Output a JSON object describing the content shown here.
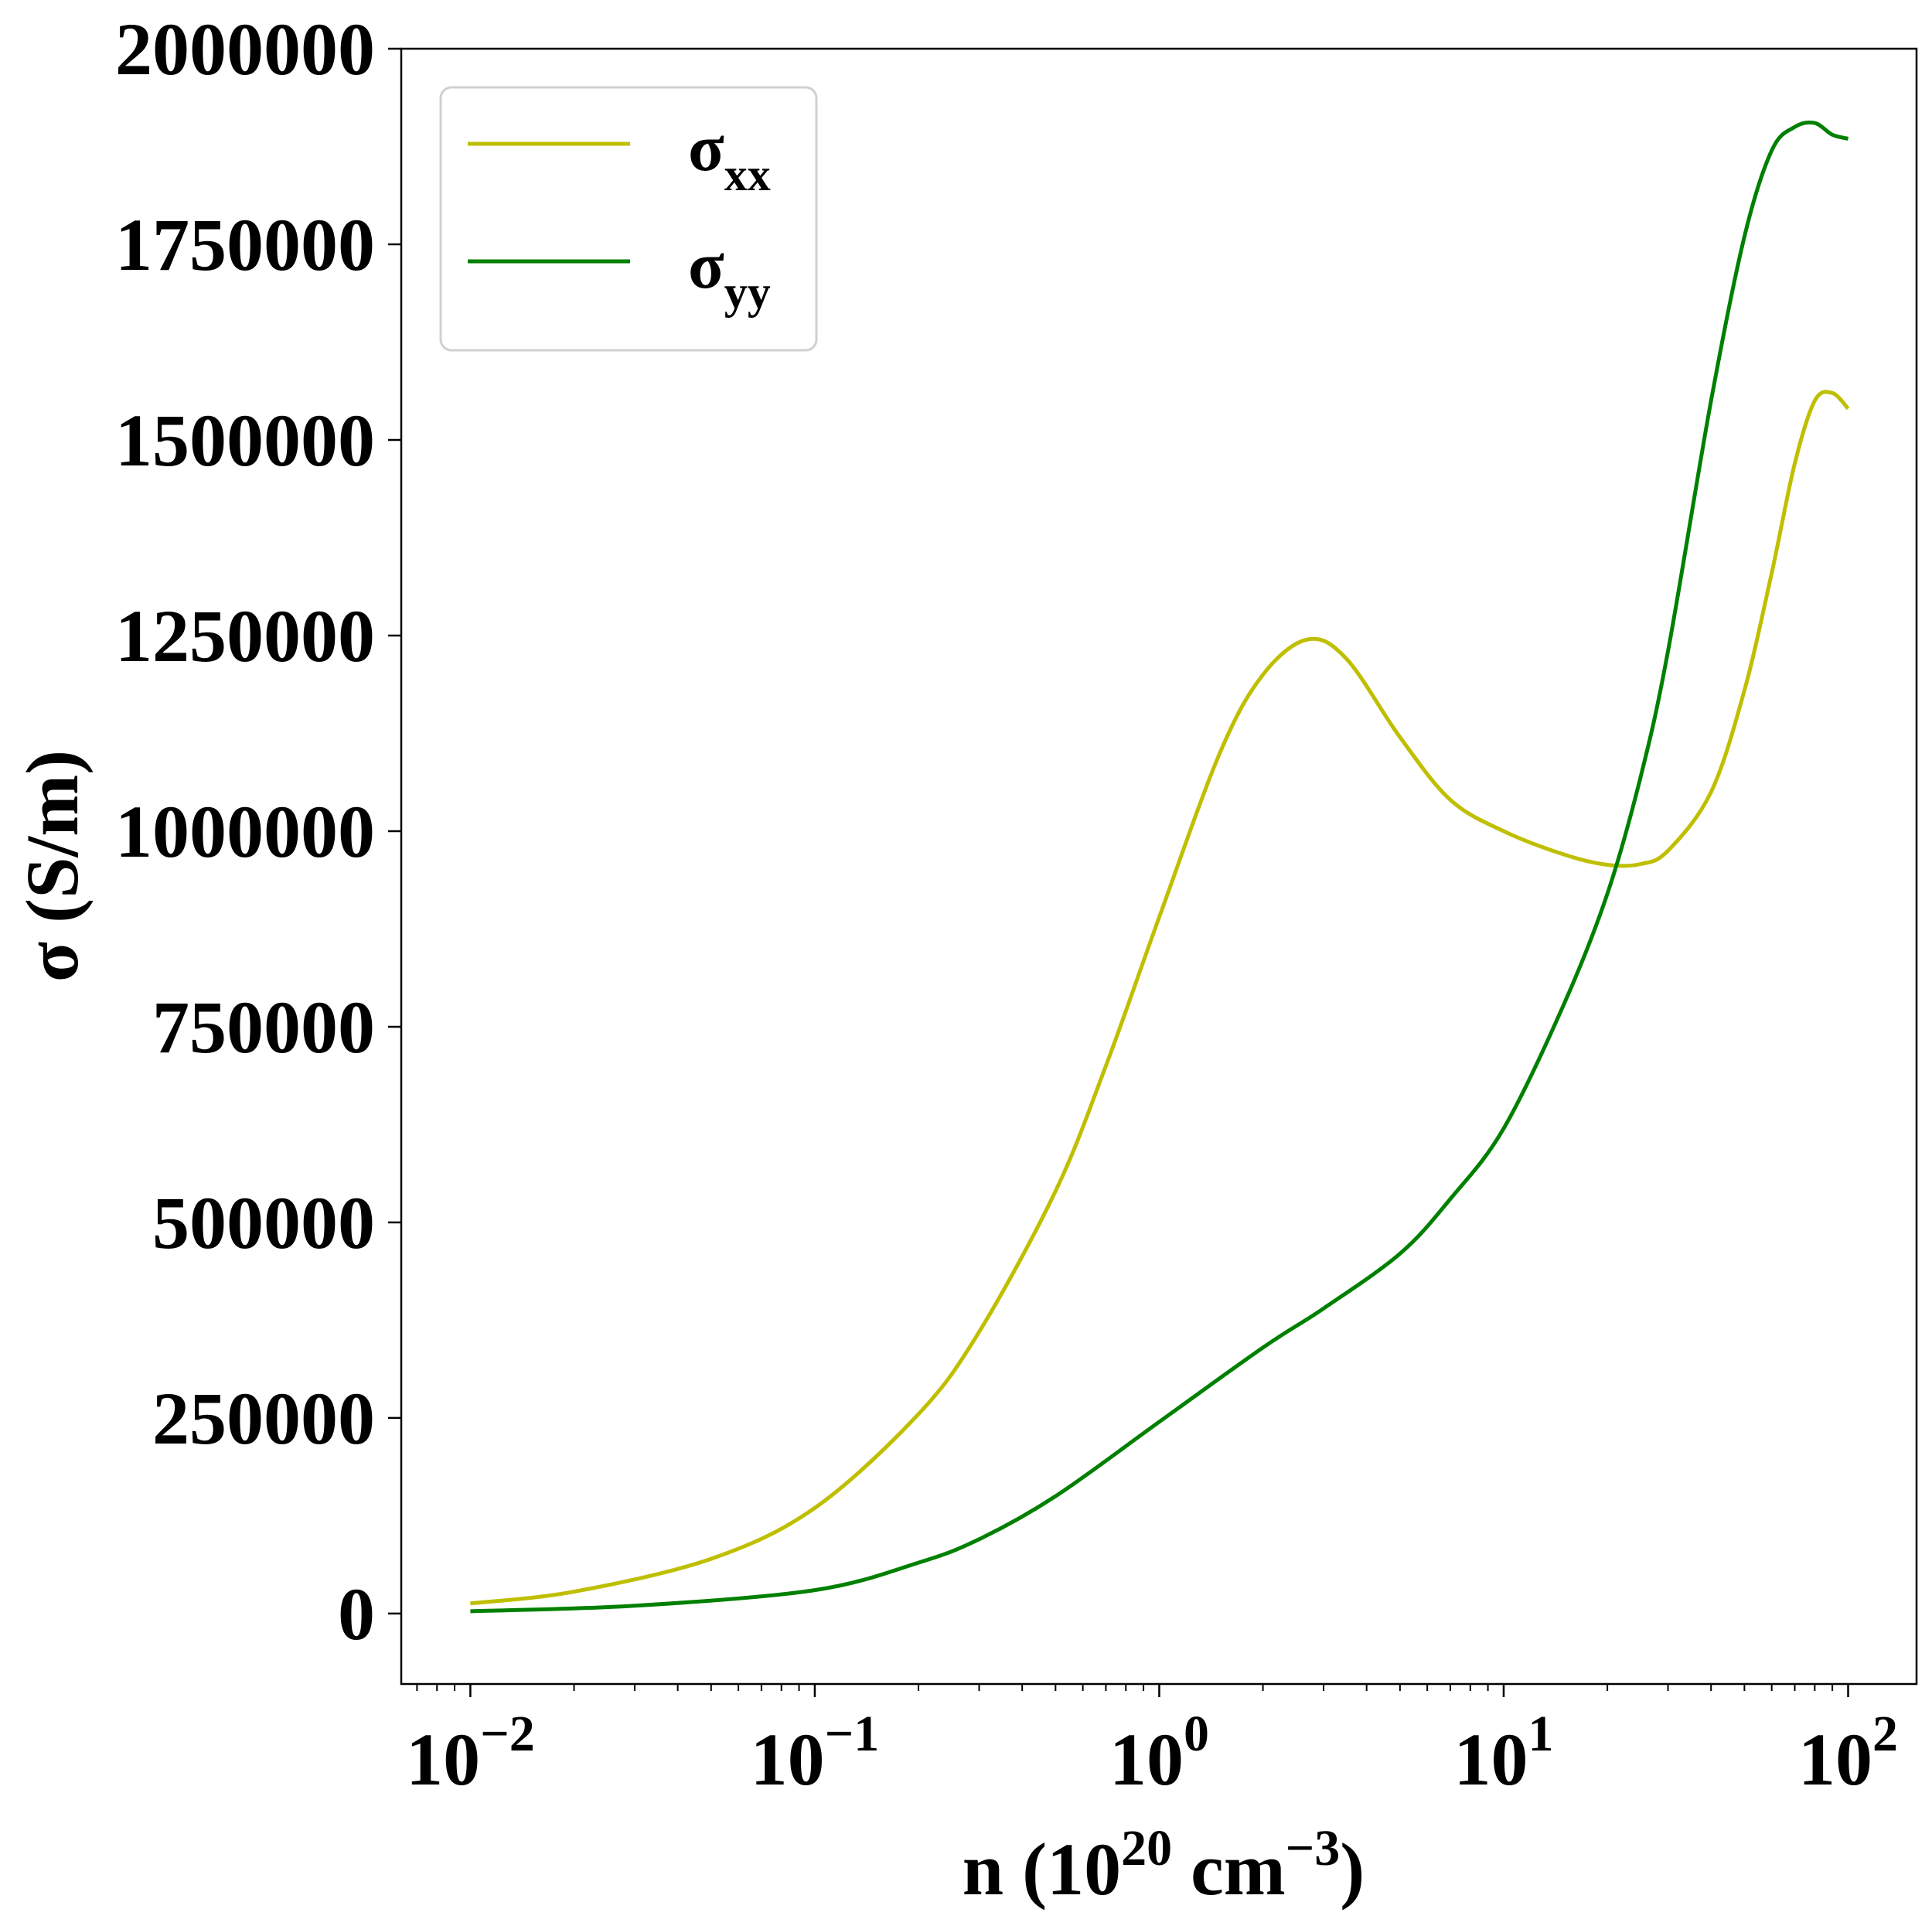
{
  "chart_data": {
    "type": "line",
    "title": "",
    "xlabel": {
      "base": "n (10",
      "sup1": "20",
      "mid": " cm",
      "sup2": "−3",
      "end": ")"
    },
    "ylabel": "σ (S/m)",
    "xscale": "log",
    "xlim": [
      0.0063,
      158
    ],
    "ylim": [
      -90000,
      2000000
    ],
    "grid": false,
    "legend_position": "top-left",
    "x_ticks": [
      {
        "value": 0.01,
        "base": "10",
        "exp": "−2"
      },
      {
        "value": 0.1,
        "base": "10",
        "exp": "−1"
      },
      {
        "value": 1,
        "base": "10",
        "exp": "0"
      },
      {
        "value": 10,
        "base": "10",
        "exp": "1"
      },
      {
        "value": 100,
        "base": "10",
        "exp": "2"
      }
    ],
    "y_ticks": [
      {
        "value": 0,
        "label": "0"
      },
      {
        "value": 250000,
        "label": "250000"
      },
      {
        "value": 500000,
        "label": "500000"
      },
      {
        "value": 750000,
        "label": "750000"
      },
      {
        "value": 1000000,
        "label": "1000000"
      },
      {
        "value": 1250000,
        "label": "1250000"
      },
      {
        "value": 1500000,
        "label": "1500000"
      },
      {
        "value": 1750000,
        "label": "1750000"
      },
      {
        "value": 2000000,
        "label": "2000000"
      }
    ],
    "series": [
      {
        "name": "σ",
        "name_sub": "xx",
        "color": "#bfbf00",
        "x": [
          0.01,
          0.02,
          0.05,
          0.1,
          0.2,
          0.3,
          0.5,
          0.7,
          1.0,
          1.5,
          2.0,
          2.7,
          3.5,
          5.0,
          7.0,
          10,
          15,
          20,
          25,
          30,
          40,
          50,
          60,
          70,
          80,
          90,
          100
        ],
        "y": [
          13000,
          28000,
          70000,
          135000,
          255000,
          360000,
          540000,
          700000,
          890000,
          1100000,
          1200000,
          1245000,
          1220000,
          1120000,
          1040000,
          1000000,
          970000,
          957000,
          958000,
          975000,
          1050000,
          1180000,
          1330000,
          1470000,
          1550000,
          1560000,
          1540000
        ]
      },
      {
        "name": "σ",
        "name_sub": "yy",
        "color": "#008000",
        "x": [
          0.01,
          0.03,
          0.1,
          0.2,
          0.3,
          0.5,
          1.0,
          2.0,
          3.0,
          5.0,
          7.0,
          10,
          15,
          20,
          25,
          30,
          40,
          50,
          60,
          70,
          80,
          90,
          100
        ],
        "y": [
          3000,
          10000,
          30000,
          65000,
          95000,
          150000,
          245000,
          340000,
          390000,
          460000,
          530000,
          620000,
          780000,
          920000,
          1070000,
          1230000,
          1550000,
          1760000,
          1870000,
          1900000,
          1905000,
          1890000,
          1885000
        ]
      }
    ]
  }
}
